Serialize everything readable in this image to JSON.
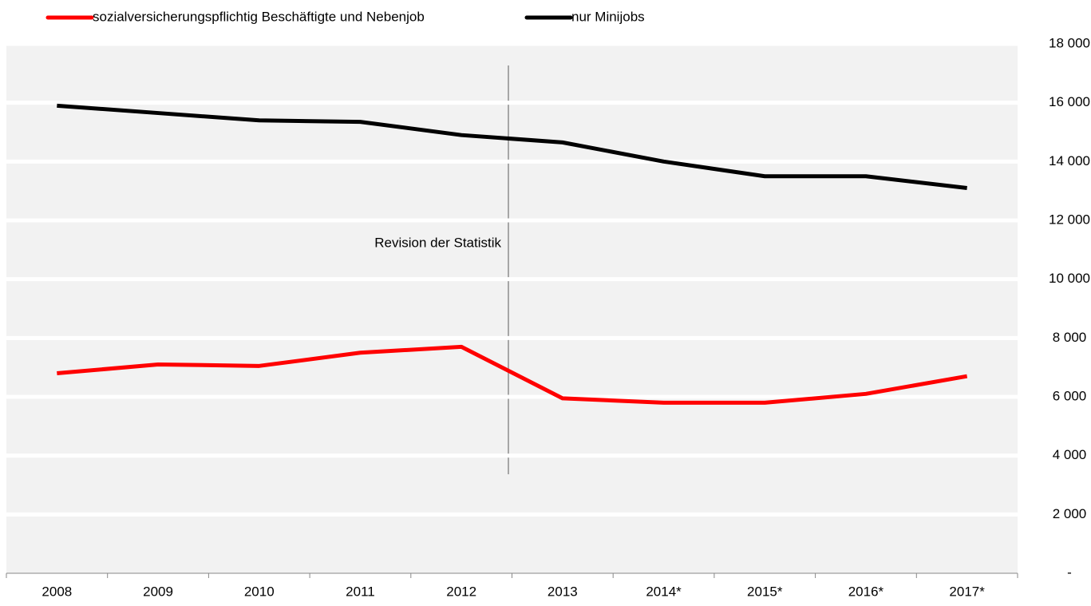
{
  "chart_data": {
    "type": "line",
    "categories": [
      "2008",
      "2009",
      "2010",
      "2011",
      "2012",
      "2013",
      "2014*",
      "2015*",
      "2016*",
      "2017*"
    ],
    "series": [
      {
        "name": "sozialversicherungspflichtig Beschäftigte und Nebenjob",
        "color": "#ff0000",
        "values": [
          6800,
          7100,
          7050,
          7500,
          7700,
          5950,
          5800,
          5800,
          6100,
          6700
        ]
      },
      {
        "name": "nur Minijobs",
        "color": "#000000",
        "values": [
          15900,
          15650,
          15400,
          15350,
          14900,
          14650,
          14000,
          13500,
          13500,
          13100
        ]
      }
    ],
    "ylim": [
      0,
      18000
    ],
    "yticks": [
      {
        "value": 0,
        "label": "-"
      },
      {
        "value": 2000,
        "label": "2 000"
      },
      {
        "value": 4000,
        "label": "4 000"
      },
      {
        "value": 6000,
        "label": "6 000"
      },
      {
        "value": 8000,
        "label": "8 000"
      },
      {
        "value": 10000,
        "label": "10 000"
      },
      {
        "value": 12000,
        "label": "12 000"
      },
      {
        "value": 14000,
        "label": "14 000"
      },
      {
        "value": 16000,
        "label": "16 000"
      },
      {
        "value": 18000,
        "label": "18 000"
      }
    ],
    "annotations": [
      "Revision der Statistik"
    ],
    "grid": true,
    "legend": "top"
  }
}
